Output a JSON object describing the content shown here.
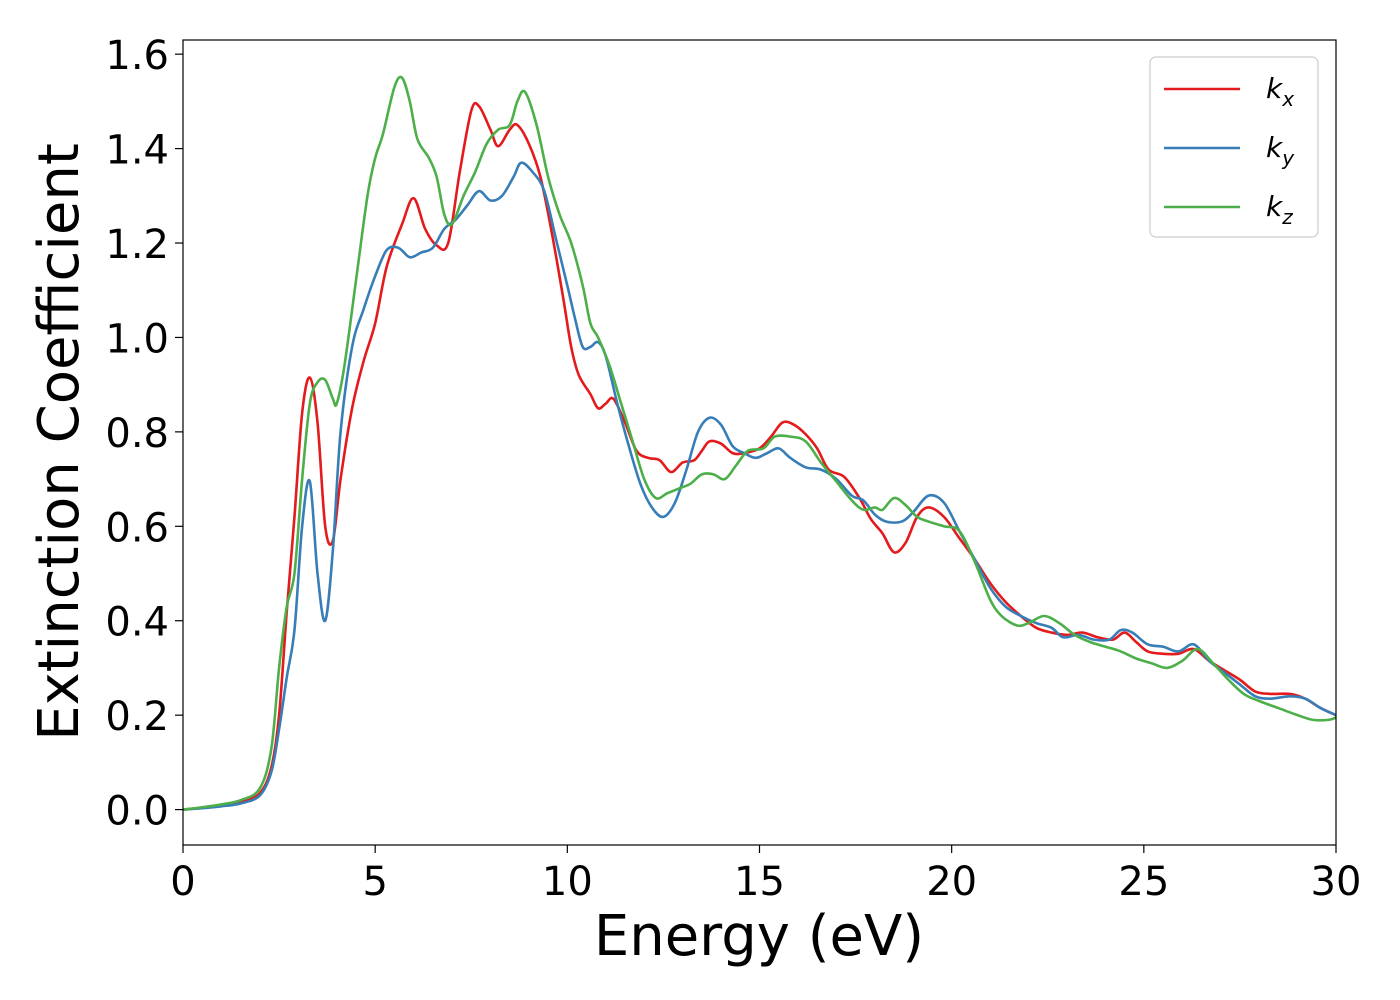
{
  "chart_data": {
    "type": "line",
    "title": "",
    "xlabel": "Energy (eV)",
    "ylabel": "Extinction Coefficient",
    "xlim": [
      0,
      30
    ],
    "ylim": [
      -0.075,
      1.63
    ],
    "xticks": [
      0,
      5,
      10,
      15,
      20,
      25,
      30
    ],
    "yticks": [
      0.0,
      0.2,
      0.4,
      0.6,
      0.8,
      1.0,
      1.2,
      1.4,
      1.6
    ],
    "xtick_labels": [
      "0",
      "5",
      "10",
      "15",
      "20",
      "25",
      "30"
    ],
    "ytick_labels": [
      "0.0",
      "0.2",
      "0.4",
      "0.6",
      "0.8",
      "1.0",
      "1.2",
      "1.4",
      "1.6"
    ],
    "grid": false,
    "legend_position": "top-right",
    "series": [
      {
        "name": "k_x",
        "label_main": "k",
        "label_sub": "x",
        "color": "#e41a1c",
        "points": [
          [
            0,
            0
          ],
          [
            0.5,
            0.004
          ],
          [
            1,
            0.009
          ],
          [
            1.5,
            0.016
          ],
          [
            2,
            0.035
          ],
          [
            2.3,
            0.09
          ],
          [
            2.5,
            0.2
          ],
          [
            2.7,
            0.42
          ],
          [
            2.9,
            0.62
          ],
          [
            3.1,
            0.84
          ],
          [
            3.3,
            0.915
          ],
          [
            3.5,
            0.82
          ],
          [
            3.7,
            0.6
          ],
          [
            3.9,
            0.57
          ],
          [
            4.1,
            0.7
          ],
          [
            4.4,
            0.85
          ],
          [
            4.7,
            0.95
          ],
          [
            5,
            1.03
          ],
          [
            5.3,
            1.15
          ],
          [
            5.7,
            1.24
          ],
          [
            6,
            1.295
          ],
          [
            6.3,
            1.23
          ],
          [
            6.6,
            1.195
          ],
          [
            6.9,
            1.2
          ],
          [
            7.2,
            1.35
          ],
          [
            7.5,
            1.48
          ],
          [
            7.7,
            1.49
          ],
          [
            8,
            1.44
          ],
          [
            8.2,
            1.405
          ],
          [
            8.5,
            1.44
          ],
          [
            8.7,
            1.45
          ],
          [
            9,
            1.41
          ],
          [
            9.3,
            1.34
          ],
          [
            9.6,
            1.22
          ],
          [
            9.9,
            1.08
          ],
          [
            10.1,
            0.98
          ],
          [
            10.3,
            0.92
          ],
          [
            10.6,
            0.88
          ],
          [
            10.8,
            0.85
          ],
          [
            11,
            0.86
          ],
          [
            11.2,
            0.87
          ],
          [
            11.5,
            0.82
          ],
          [
            11.8,
            0.76
          ],
          [
            12.1,
            0.745
          ],
          [
            12.4,
            0.74
          ],
          [
            12.7,
            0.715
          ],
          [
            13,
            0.735
          ],
          [
            13.3,
            0.74
          ],
          [
            13.5,
            0.76
          ],
          [
            13.7,
            0.78
          ],
          [
            14,
            0.775
          ],
          [
            14.3,
            0.755
          ],
          [
            14.6,
            0.755
          ],
          [
            15,
            0.765
          ],
          [
            15.3,
            0.79
          ],
          [
            15.6,
            0.82
          ],
          [
            15.9,
            0.815
          ],
          [
            16.2,
            0.795
          ],
          [
            16.5,
            0.765
          ],
          [
            16.8,
            0.72
          ],
          [
            17.2,
            0.705
          ],
          [
            17.6,
            0.66
          ],
          [
            17.9,
            0.615
          ],
          [
            18.2,
            0.585
          ],
          [
            18.5,
            0.545
          ],
          [
            18.8,
            0.565
          ],
          [
            19.1,
            0.62
          ],
          [
            19.4,
            0.64
          ],
          [
            19.8,
            0.62
          ],
          [
            20.2,
            0.575
          ],
          [
            20.6,
            0.53
          ],
          [
            21,
            0.48
          ],
          [
            21.4,
            0.44
          ],
          [
            21.8,
            0.41
          ],
          [
            22.2,
            0.385
          ],
          [
            22.6,
            0.375
          ],
          [
            23,
            0.37
          ],
          [
            23.4,
            0.375
          ],
          [
            23.8,
            0.365
          ],
          [
            24.2,
            0.36
          ],
          [
            24.5,
            0.375
          ],
          [
            24.8,
            0.355
          ],
          [
            25.1,
            0.335
          ],
          [
            25.5,
            0.33
          ],
          [
            25.9,
            0.33
          ],
          [
            26.3,
            0.34
          ],
          [
            26.7,
            0.315
          ],
          [
            27.1,
            0.295
          ],
          [
            27.5,
            0.275
          ],
          [
            27.9,
            0.25
          ],
          [
            28.3,
            0.245
          ],
          [
            28.8,
            0.245
          ],
          [
            29.2,
            0.235
          ],
          [
            29.6,
            0.215
          ],
          [
            30,
            0.2
          ]
        ]
      },
      {
        "name": "k_y",
        "label_main": "k",
        "label_sub": "y",
        "color": "#377eb8",
        "points": [
          [
            0,
            0
          ],
          [
            0.5,
            0.003
          ],
          [
            1,
            0.007
          ],
          [
            1.5,
            0.013
          ],
          [
            2,
            0.03
          ],
          [
            2.3,
            0.08
          ],
          [
            2.5,
            0.17
          ],
          [
            2.7,
            0.28
          ],
          [
            2.9,
            0.38
          ],
          [
            3.1,
            0.6
          ],
          [
            3.3,
            0.695
          ],
          [
            3.5,
            0.5
          ],
          [
            3.7,
            0.4
          ],
          [
            3.9,
            0.55
          ],
          [
            4.1,
            0.8
          ],
          [
            4.4,
            0.98
          ],
          [
            4.7,
            1.06
          ],
          [
            5,
            1.13
          ],
          [
            5.3,
            1.185
          ],
          [
            5.6,
            1.19
          ],
          [
            5.9,
            1.17
          ],
          [
            6.2,
            1.18
          ],
          [
            6.5,
            1.19
          ],
          [
            6.8,
            1.23
          ],
          [
            7.1,
            1.25
          ],
          [
            7.4,
            1.28
          ],
          [
            7.7,
            1.31
          ],
          [
            8,
            1.29
          ],
          [
            8.3,
            1.3
          ],
          [
            8.6,
            1.34
          ],
          [
            8.8,
            1.37
          ],
          [
            9.1,
            1.35
          ],
          [
            9.4,
            1.31
          ],
          [
            9.7,
            1.21
          ],
          [
            10,
            1.11
          ],
          [
            10.2,
            1.04
          ],
          [
            10.4,
            0.98
          ],
          [
            10.6,
            0.98
          ],
          [
            10.8,
            0.99
          ],
          [
            11,
            0.96
          ],
          [
            11.3,
            0.86
          ],
          [
            11.6,
            0.77
          ],
          [
            11.9,
            0.69
          ],
          [
            12.2,
            0.64
          ],
          [
            12.5,
            0.62
          ],
          [
            12.8,
            0.65
          ],
          [
            13.1,
            0.72
          ],
          [
            13.4,
            0.8
          ],
          [
            13.7,
            0.83
          ],
          [
            14,
            0.815
          ],
          [
            14.3,
            0.77
          ],
          [
            14.6,
            0.755
          ],
          [
            14.9,
            0.745
          ],
          [
            15.2,
            0.755
          ],
          [
            15.5,
            0.765
          ],
          [
            15.8,
            0.745
          ],
          [
            16.2,
            0.725
          ],
          [
            16.6,
            0.72
          ],
          [
            17,
            0.7
          ],
          [
            17.4,
            0.665
          ],
          [
            17.7,
            0.655
          ],
          [
            18,
            0.625
          ],
          [
            18.3,
            0.61
          ],
          [
            18.7,
            0.61
          ],
          [
            19,
            0.63
          ],
          [
            19.4,
            0.665
          ],
          [
            19.8,
            0.65
          ],
          [
            20.2,
            0.59
          ],
          [
            20.6,
            0.53
          ],
          [
            21,
            0.47
          ],
          [
            21.4,
            0.43
          ],
          [
            21.8,
            0.41
          ],
          [
            22.2,
            0.395
          ],
          [
            22.6,
            0.385
          ],
          [
            22.9,
            0.365
          ],
          [
            23.3,
            0.37
          ],
          [
            23.7,
            0.36
          ],
          [
            24.1,
            0.36
          ],
          [
            24.4,
            0.38
          ],
          [
            24.7,
            0.375
          ],
          [
            25.1,
            0.35
          ],
          [
            25.5,
            0.345
          ],
          [
            25.9,
            0.335
          ],
          [
            26.3,
            0.35
          ],
          [
            26.7,
            0.315
          ],
          [
            27.1,
            0.29
          ],
          [
            27.5,
            0.265
          ],
          [
            27.9,
            0.24
          ],
          [
            28.3,
            0.235
          ],
          [
            28.8,
            0.24
          ],
          [
            29.2,
            0.235
          ],
          [
            29.6,
            0.215
          ],
          [
            30,
            0.2
          ]
        ]
      },
      {
        "name": "k_z",
        "label_main": "k",
        "label_sub": "z",
        "color": "#4daf4a",
        "points": [
          [
            0,
            0
          ],
          [
            0.5,
            0.005
          ],
          [
            1,
            0.011
          ],
          [
            1.5,
            0.02
          ],
          [
            2,
            0.045
          ],
          [
            2.3,
            0.13
          ],
          [
            2.5,
            0.3
          ],
          [
            2.7,
            0.43
          ],
          [
            2.9,
            0.5
          ],
          [
            3.1,
            0.7
          ],
          [
            3.3,
            0.86
          ],
          [
            3.5,
            0.905
          ],
          [
            3.7,
            0.91
          ],
          [
            3.9,
            0.87
          ],
          [
            4,
            0.86
          ],
          [
            4.2,
            0.94
          ],
          [
            4.5,
            1.12
          ],
          [
            4.8,
            1.3
          ],
          [
            5,
            1.38
          ],
          [
            5.2,
            1.43
          ],
          [
            5.5,
            1.53
          ],
          [
            5.7,
            1.55
          ],
          [
            5.9,
            1.5
          ],
          [
            6.1,
            1.42
          ],
          [
            6.4,
            1.38
          ],
          [
            6.6,
            1.34
          ],
          [
            6.8,
            1.26
          ],
          [
            7,
            1.24
          ],
          [
            7.3,
            1.3
          ],
          [
            7.6,
            1.35
          ],
          [
            7.9,
            1.41
          ],
          [
            8.2,
            1.44
          ],
          [
            8.5,
            1.45
          ],
          [
            8.7,
            1.5
          ],
          [
            8.9,
            1.52
          ],
          [
            9.2,
            1.45
          ],
          [
            9.5,
            1.34
          ],
          [
            9.8,
            1.26
          ],
          [
            10.1,
            1.2
          ],
          [
            10.4,
            1.11
          ],
          [
            10.6,
            1.03
          ],
          [
            10.8,
            1.0
          ],
          [
            11.1,
            0.94
          ],
          [
            11.4,
            0.86
          ],
          [
            11.7,
            0.78
          ],
          [
            12,
            0.7
          ],
          [
            12.3,
            0.66
          ],
          [
            12.6,
            0.67
          ],
          [
            12.9,
            0.68
          ],
          [
            13.2,
            0.69
          ],
          [
            13.5,
            0.71
          ],
          [
            13.8,
            0.71
          ],
          [
            14.1,
            0.7
          ],
          [
            14.4,
            0.73
          ],
          [
            14.7,
            0.76
          ],
          [
            15.1,
            0.765
          ],
          [
            15.4,
            0.79
          ],
          [
            15.8,
            0.79
          ],
          [
            16.2,
            0.78
          ],
          [
            16.6,
            0.735
          ],
          [
            17,
            0.695
          ],
          [
            17.4,
            0.655
          ],
          [
            17.7,
            0.635
          ],
          [
            18,
            0.64
          ],
          [
            18.2,
            0.635
          ],
          [
            18.5,
            0.66
          ],
          [
            18.8,
            0.645
          ],
          [
            19.1,
            0.62
          ],
          [
            19.4,
            0.61
          ],
          [
            19.8,
            0.6
          ],
          [
            20.2,
            0.59
          ],
          [
            20.6,
            0.525
          ],
          [
            21,
            0.445
          ],
          [
            21.3,
            0.41
          ],
          [
            21.7,
            0.39
          ],
          [
            22,
            0.395
          ],
          [
            22.4,
            0.41
          ],
          [
            22.8,
            0.395
          ],
          [
            23.2,
            0.37
          ],
          [
            23.6,
            0.355
          ],
          [
            24,
            0.345
          ],
          [
            24.4,
            0.335
          ],
          [
            24.8,
            0.32
          ],
          [
            25.2,
            0.31
          ],
          [
            25.6,
            0.3
          ],
          [
            26,
            0.315
          ],
          [
            26.4,
            0.34
          ],
          [
            26.8,
            0.31
          ],
          [
            27.2,
            0.275
          ],
          [
            27.6,
            0.245
          ],
          [
            28,
            0.23
          ],
          [
            28.5,
            0.215
          ],
          [
            29,
            0.2
          ],
          [
            29.4,
            0.19
          ],
          [
            29.8,
            0.19
          ],
          [
            30,
            0.195
          ]
        ]
      }
    ]
  }
}
